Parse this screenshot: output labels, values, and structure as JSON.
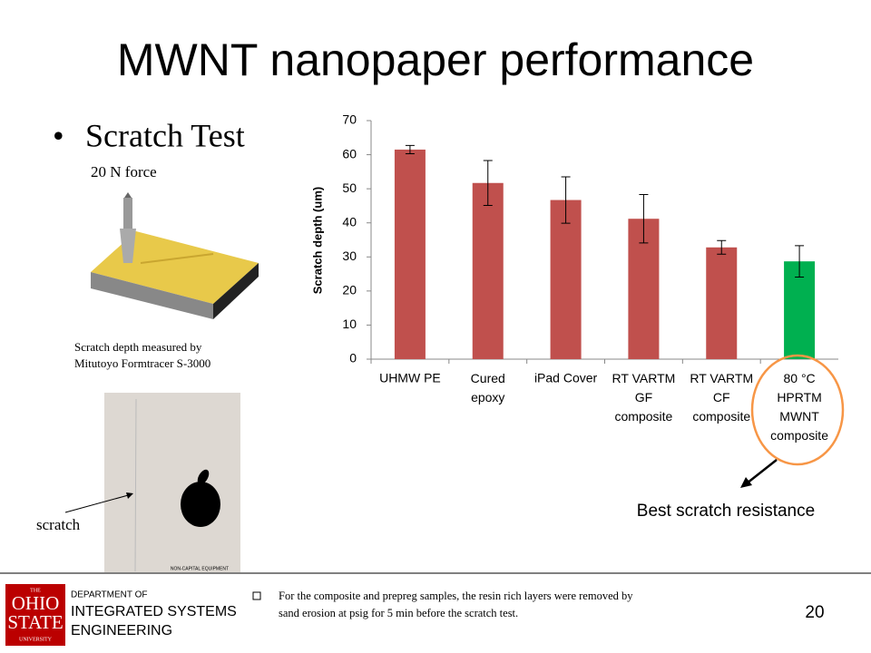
{
  "slide": {
    "title": "MWNT nanopaper performance",
    "bullet": "Scratch Test",
    "force_label": "20 N force",
    "measure_note": [
      "Scratch depth measured by",
      "Mitutoyo Formtracer S-3000"
    ],
    "scratch_label": "scratch",
    "callout": "Best scratch resistance",
    "footer": {
      "logo": [
        "THE",
        "OHIO",
        "STATE",
        "UNIVERSITY"
      ],
      "department": [
        "DEPARTMENT OF",
        "INTEGRATED SYSTEMS",
        "ENGINEERING"
      ],
      "note": [
        "For the composite and prepreg samples, the resin rich layers were removed by",
        "sand erosion at psig for 5 min before the scratch test."
      ],
      "page": "20"
    },
    "photo_caption": "NON-CAPITAL EQUIPMENT"
  },
  "chart_data": {
    "type": "bar",
    "y_label": "Scratch depth (um)",
    "categories": [
      "UHMW PE",
      "Cured\nepoxy",
      "iPad Cover",
      "RT VARTM\nGF\ncomposite",
      "RT VARTM\nCF\ncomposite",
      "80 °C\nHPRTM\nMWNT\ncomposite"
    ],
    "values": [
      61.5,
      51.7,
      46.7,
      41.2,
      32.8,
      28.7
    ],
    "errors": [
      1.2,
      6.6,
      6.8,
      7.1,
      2.0,
      4.6
    ],
    "colors": [
      "#c0504d",
      "#c0504d",
      "#c0504d",
      "#c0504d",
      "#c0504d",
      "#00b050"
    ],
    "ylim": [
      0,
      70
    ],
    "yticks": [
      0,
      10,
      20,
      30,
      40,
      50,
      60,
      70
    ],
    "grid": false
  }
}
